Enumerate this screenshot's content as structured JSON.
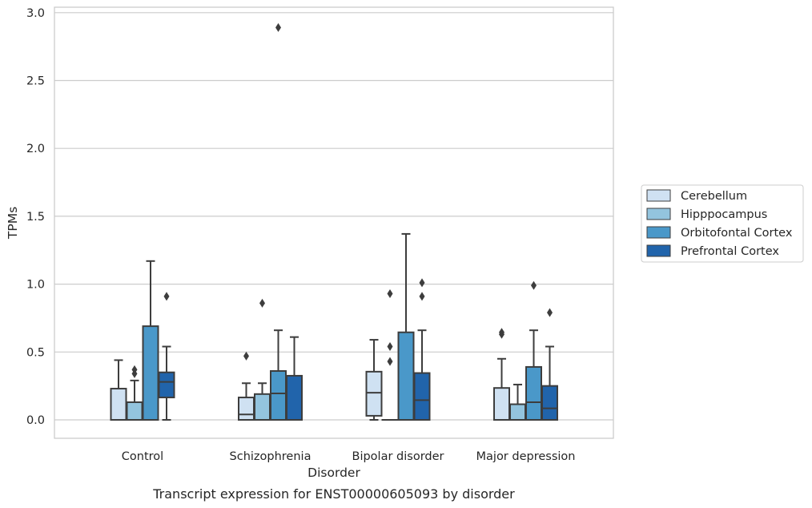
{
  "caption": "Transcript expression for ENST00000605093 by disorder",
  "chart_data": {
    "type": "box",
    "xlabel": "Disorder",
    "ylabel": "TPMs",
    "ylim": [
      -0.14,
      3.04
    ],
    "yticks": [
      0.0,
      0.5,
      1.0,
      1.5,
      2.0,
      2.5,
      3.0
    ],
    "ytick_labels": [
      "0.0",
      "0.5",
      "1.0",
      "1.5",
      "2.0",
      "2.5",
      "3.0"
    ],
    "grid": "horizontal",
    "legend_position": "right",
    "categories": [
      "Control",
      "Schizophrenia",
      "Bipolar disorder",
      "Major depression"
    ],
    "series": [
      {
        "name": "Cerebellum",
        "color": "#cfe1f2",
        "boxes": [
          {
            "whislo": 0.0,
            "q1": 0.0,
            "med": 0.0,
            "q3": 0.23,
            "whishi": 0.44,
            "fliers": []
          },
          {
            "whislo": 0.0,
            "q1": 0.0,
            "med": 0.04,
            "q3": 0.165,
            "whishi": 0.27,
            "fliers": [
              0.47
            ]
          },
          {
            "whislo": 0.0,
            "q1": 0.03,
            "med": 0.2,
            "q3": 0.355,
            "whishi": 0.59,
            "fliers": []
          },
          {
            "whislo": 0.0,
            "q1": 0.0,
            "med": 0.0,
            "q3": 0.235,
            "whishi": 0.45,
            "fliers": [
              0.63,
              0.645
            ]
          }
        ]
      },
      {
        "name": "Hipppocampus",
        "color": "#93c4de",
        "boxes": [
          {
            "whislo": 0.0,
            "q1": 0.0,
            "med": 0.0,
            "q3": 0.13,
            "whishi": 0.29,
            "fliers": [
              0.34,
              0.37
            ]
          },
          {
            "whislo": 0.0,
            "q1": 0.0,
            "med": 0.0,
            "q3": 0.19,
            "whishi": 0.27,
            "fliers": [
              0.86
            ]
          },
          {
            "whislo": 0.0,
            "q1": 0.0,
            "med": 0.0,
            "q3": 0.0,
            "whishi": 0.0,
            "fliers": [
              0.43,
              0.54,
              0.93
            ]
          },
          {
            "whislo": 0.0,
            "q1": 0.0,
            "med": 0.0,
            "q3": 0.115,
            "whishi": 0.26,
            "fliers": []
          }
        ]
      },
      {
        "name": "Orbitofontal Cortex",
        "color": "#4a98c9",
        "boxes": [
          {
            "whislo": 0.0,
            "q1": 0.0,
            "med": 0.0,
            "q3": 0.69,
            "whishi": 1.17,
            "fliers": []
          },
          {
            "whislo": 0.0,
            "q1": 0.0,
            "med": 0.195,
            "q3": 0.36,
            "whishi": 0.66,
            "fliers": [
              2.89
            ]
          },
          {
            "whislo": 0.0,
            "q1": 0.0,
            "med": 0.0,
            "q3": 0.645,
            "whishi": 1.37,
            "fliers": []
          },
          {
            "whislo": 0.0,
            "q1": 0.0,
            "med": 0.13,
            "q3": 0.39,
            "whishi": 0.66,
            "fliers": [
              0.99
            ]
          }
        ]
      },
      {
        "name": "Prefrontal Cortex",
        "color": "#2164ab",
        "boxes": [
          {
            "whislo": 0.0,
            "q1": 0.165,
            "med": 0.28,
            "q3": 0.35,
            "whishi": 0.54,
            "fliers": [
              0.91
            ]
          },
          {
            "whislo": 0.0,
            "q1": 0.0,
            "med": 0.0,
            "q3": 0.325,
            "whishi": 0.61,
            "fliers": []
          },
          {
            "whislo": 0.0,
            "q1": 0.0,
            "med": 0.145,
            "q3": 0.345,
            "whishi": 0.66,
            "fliers": [
              0.91,
              1.01
            ]
          },
          {
            "whislo": 0.0,
            "q1": 0.0,
            "med": 0.085,
            "q3": 0.25,
            "whishi": 0.54,
            "fliers": [
              0.79
            ]
          }
        ]
      }
    ]
  }
}
